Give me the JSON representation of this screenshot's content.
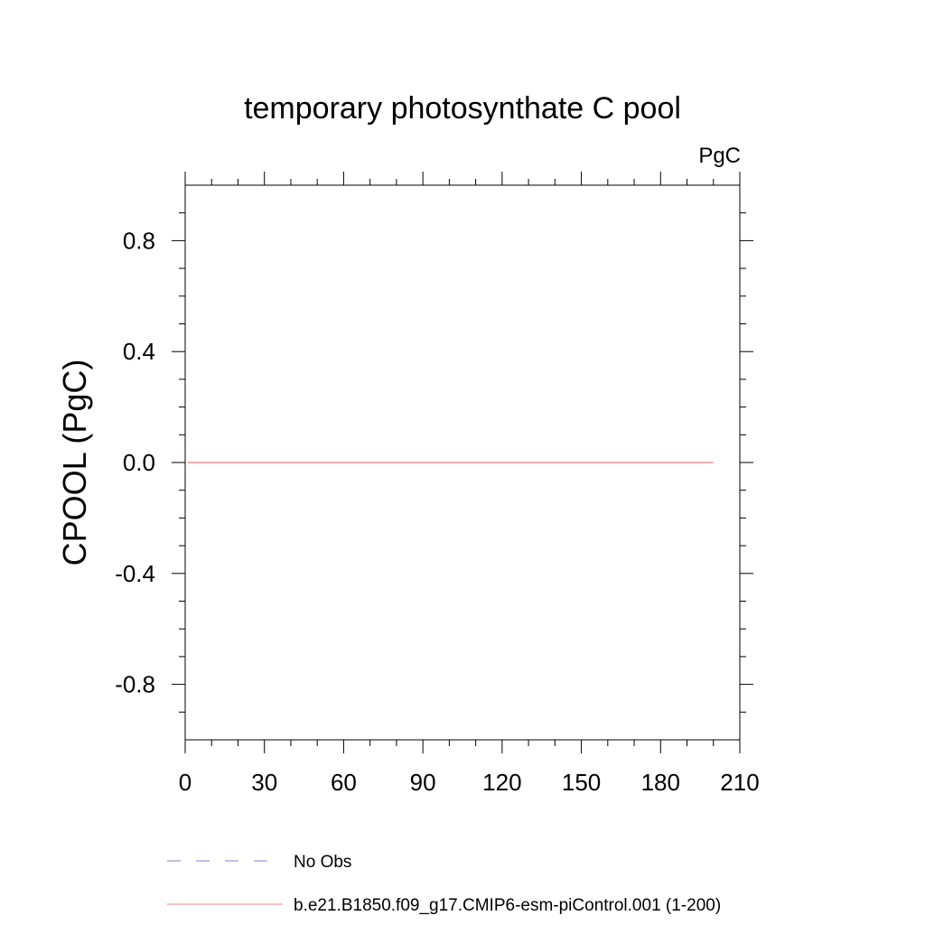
{
  "chart_data": {
    "type": "line",
    "title": "temporary photosynthate C pool",
    "units_label": "PgC",
    "ylabel": "CPOOL  (PgC)",
    "xlabel": "",
    "xlim": [
      0,
      210
    ],
    "ylim": [
      -1.0,
      1.0
    ],
    "x_ticks": [
      0,
      30,
      60,
      90,
      120,
      150,
      180,
      210
    ],
    "y_ticks": [
      -0.8,
      -0.4,
      0.0,
      0.4,
      0.8
    ],
    "x_tick_labels": [
      "0",
      "30",
      "60",
      "90",
      "120",
      "150",
      "180",
      "210"
    ],
    "y_tick_labels": [
      "-0.8",
      "-0.4",
      "0.0",
      "0.4",
      "0.8"
    ],
    "x_minor_step": 10,
    "y_minor_step": 0.1,
    "grid": false,
    "series": [
      {
        "name": "b.e21.B1850.f09_g17.CMIP6-esm-piControl.001 (1-200)",
        "color": "#f08080",
        "style": "solid",
        "x": [
          1,
          200
        ],
        "y": [
          0.0,
          0.0
        ]
      }
    ],
    "legend": {
      "placement": "bottom-left",
      "entries": [
        {
          "label": "No Obs",
          "color": "#8080c8",
          "style": "dashed"
        },
        {
          "label": "b.e21.B1850.f09_g17.CMIP6-esm-piControl.001 (1-200)",
          "color": "#f08080",
          "style": "solid"
        }
      ]
    }
  }
}
